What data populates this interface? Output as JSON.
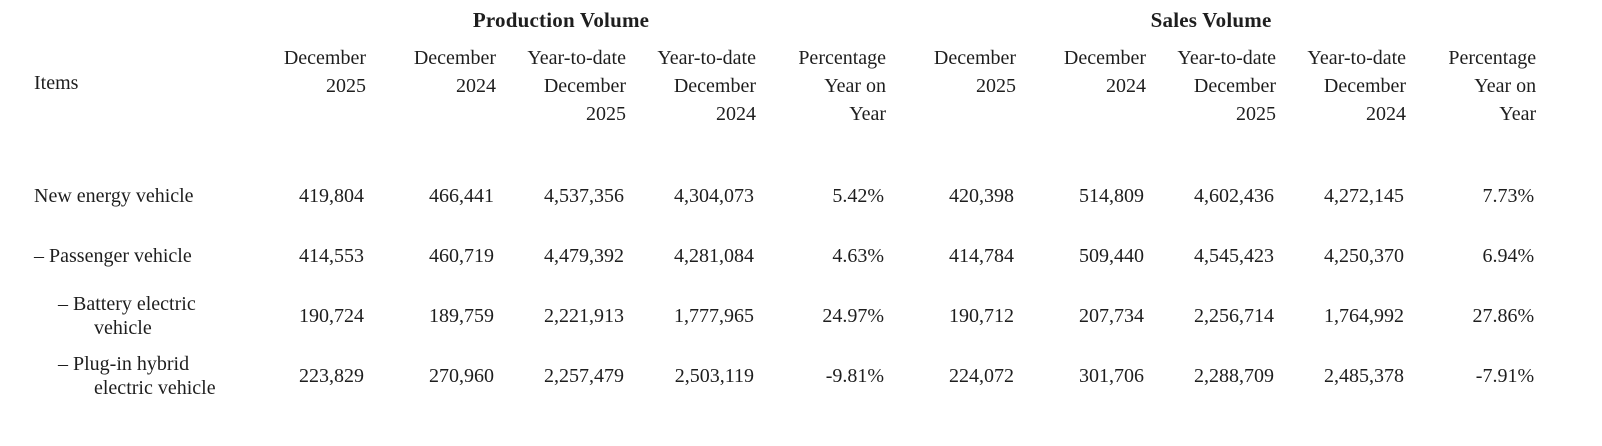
{
  "page": {
    "background": "#ffffff",
    "text_color": "#1e1e1e"
  },
  "table": {
    "groups": {
      "production": "Production Volume",
      "sales": "Sales Volume"
    },
    "items_header": "Items",
    "column_headers": {
      "dec_2025": "December 2025",
      "dec_2024": "December 2024",
      "ytd_2025": "Year-to-date December 2025",
      "ytd_2024": "Year-to-date December 2024",
      "yoy": "Percentage Year on Year"
    },
    "rows": [
      {
        "item": "New energy vehicle",
        "production": {
          "dec_2025": "419,804",
          "dec_2024": "466,441",
          "ytd_2025": "4,537,356",
          "ytd_2024": "4,304,073",
          "yoy": "5.42%"
        },
        "sales": {
          "dec_2025": "420,398",
          "dec_2024": "514,809",
          "ytd_2025": "4,602,436",
          "ytd_2024": "4,272,145",
          "yoy": "7.73%"
        }
      },
      {
        "item": "– Passenger vehicle",
        "production": {
          "dec_2025": "414,553",
          "dec_2024": "460,719",
          "ytd_2025": "4,479,392",
          "ytd_2024": "4,281,084",
          "yoy": "4.63%"
        },
        "sales": {
          "dec_2025": "414,784",
          "dec_2024": "509,440",
          "ytd_2025": "4,545,423",
          "ytd_2024": "4,250,370",
          "yoy": "6.94%"
        }
      },
      {
        "item": "– Battery electric vehicle",
        "production": {
          "dec_2025": "190,724",
          "dec_2024": "189,759",
          "ytd_2025": "2,221,913",
          "ytd_2024": "1,777,965",
          "yoy": "24.97%"
        },
        "sales": {
          "dec_2025": "190,712",
          "dec_2024": "207,734",
          "ytd_2025": "2,256,714",
          "ytd_2024": "1,764,992",
          "yoy": "27.86%"
        }
      },
      {
        "item": "– Plug-in hybrid electric vehicle",
        "production": {
          "dec_2025": "223,829",
          "dec_2024": "270,960",
          "ytd_2025": "2,257,479",
          "ytd_2024": "2,503,119",
          "yoy": "-9.81%"
        },
        "sales": {
          "dec_2025": "224,072",
          "dec_2024": "301,706",
          "ytd_2025": "2,288,709",
          "ytd_2024": "2,485,378",
          "yoy": "-7.91%"
        }
      }
    ]
  }
}
